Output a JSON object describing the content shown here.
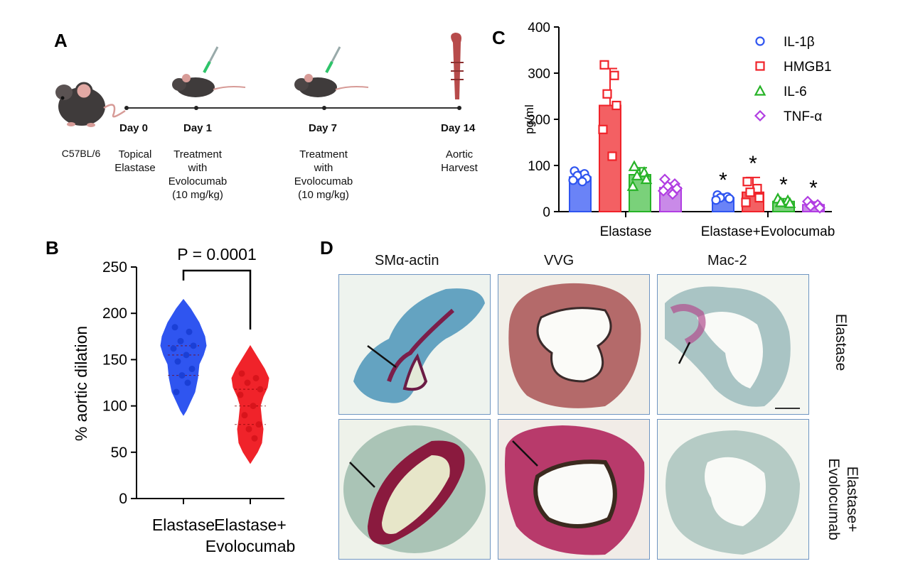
{
  "panel_a": {
    "letter": "A",
    "strain": "C57BL/6",
    "timeline": [
      {
        "day": "Day 0",
        "event": [
          "Topical",
          "Elastase"
        ]
      },
      {
        "day": "Day 1",
        "event": [
          "Treatment",
          "with",
          "Evolocumab",
          "(10 mg/kg)"
        ]
      },
      {
        "day": "Day 7",
        "event": [
          "Treatment",
          "with",
          "Evolocumab",
          "(10 mg/kg)"
        ]
      },
      {
        "day": "Day 14",
        "event": [
          "Aortic",
          "Harvest"
        ]
      }
    ]
  },
  "panel_b": {
    "letter": "B",
    "pvalue": "P = 0.0001"
  },
  "panel_c": {
    "letter": "C"
  },
  "panel_d": {
    "letter": "D",
    "columns": [
      "SMα-actin",
      "VVG",
      "Mac-2"
    ],
    "rows": [
      [
        "Elastase"
      ],
      [
        "Elastase+",
        "Evolocumab"
      ]
    ]
  },
  "colors": {
    "blue": "#2f55f0",
    "red": "#f0232a",
    "green": "#27b327",
    "purple": "#b13ee2",
    "blue_fill": "#6a83f7",
    "red_fill": "#f36063",
    "green_fill": "#7ad17a",
    "purple_fill": "#c98ae8"
  },
  "chart_data": [
    {
      "id": "B",
      "type": "violin",
      "title": "",
      "xlabel": "",
      "ylabel": "% aortic dilation",
      "ylim": [
        0,
        250
      ],
      "yticks": [
        0,
        50,
        100,
        150,
        200,
        250
      ],
      "categories": [
        [
          "Elastase"
        ],
        [
          "Elastase+",
          "Evolocumab"
        ]
      ],
      "series": [
        {
          "name": "Elastase",
          "color": "#2f55f0",
          "fill": "#2f55f0",
          "range": [
            90,
            215
          ],
          "points": [
            185,
            180,
            170,
            165,
            162,
            155,
            148,
            140,
            133,
            125,
            115
          ]
        },
        {
          "name": "Elastase+Evolocumab",
          "color": "#f0232a",
          "fill": "#f0232a",
          "range": [
            38,
            165
          ],
          "points": [
            135,
            130,
            125,
            118,
            112,
            100,
            90,
            80,
            75,
            65
          ]
        }
      ],
      "annotation": "P = 0.0001"
    },
    {
      "id": "C",
      "type": "bar",
      "title": "",
      "xlabel": "",
      "ylabel": "pg/ml",
      "ylim": [
        0,
        400
      ],
      "yticks": [
        0,
        100,
        200,
        300,
        400
      ],
      "categories": [
        "Elastase",
        "Elastase+Evolocumab"
      ],
      "series": [
        {
          "name": "IL-1β",
          "marker": "circle",
          "values": [
            75,
            30
          ],
          "err": [
            12,
            8
          ],
          "points": [
            [
              88,
              82,
              78,
              72,
              68,
              65
            ],
            [
              36,
              32,
              30,
              28,
              25
            ]
          ]
        },
        {
          "name": "HMGB1",
          "marker": "square",
          "values": [
            230,
            42
          ],
          "err": [
            80,
            32
          ],
          "points": [
            [
              318,
              295,
              255,
              230,
              178,
              120
            ],
            [
              65,
              50,
              42,
              30,
              20
            ]
          ]
        },
        {
          "name": "IL-6",
          "marker": "triangle",
          "values": [
            80,
            22
          ],
          "err": [
            15,
            6
          ],
          "points": [
            [
              98,
              85,
              78,
              70,
              55
            ],
            [
              28,
              24,
              20,
              18
            ]
          ]
        },
        {
          "name": "TNF-α",
          "marker": "diamond",
          "values": [
            52,
            15
          ],
          "err": [
            10,
            6
          ],
          "points": [
            [
              70,
              60,
              55,
              50,
              45,
              38
            ],
            [
              22,
              15,
              12,
              8
            ]
          ]
        }
      ],
      "significance": [
        "*",
        "*",
        "*",
        "*"
      ],
      "legend_position": "top-right"
    }
  ]
}
